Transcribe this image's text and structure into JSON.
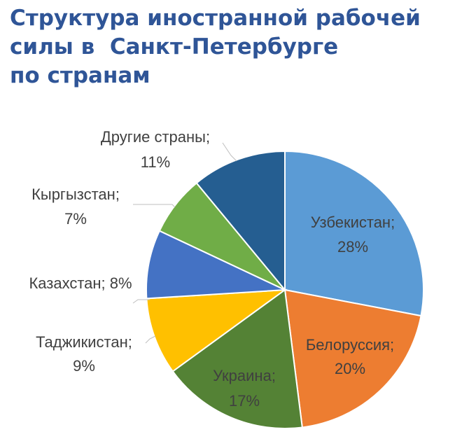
{
  "title": {
    "line1": "Структура иностранной рабочей",
    "line2": "силы в  Санкт-Петербурге",
    "line3": "по странам"
  },
  "chart_data": {
    "type": "pie",
    "start_angle_deg": 0,
    "direction": "clockwise",
    "legend": "none",
    "slices": [
      {
        "label": "Узбекистан;",
        "value": 28,
        "value_text": "28%",
        "color": "#5b9bd5",
        "label_pos": "inside",
        "text_color": "#404040"
      },
      {
        "label": "Белоруссия;",
        "value": 20,
        "value_text": "20%",
        "color": "#ed7d31",
        "label_pos": "inside",
        "text_color": "#404040"
      },
      {
        "label": "Украина;",
        "value": 17,
        "value_text": "17%",
        "color": "#548235",
        "label_pos": "inside",
        "text_color": "#404040"
      },
      {
        "label": "Таджикистан;",
        "value": 9,
        "value_text": "9%",
        "color": "#ffc000",
        "label_pos": "outside-left",
        "text_color": "#404040"
      },
      {
        "label": "Казахстан; 8%",
        "value": 8,
        "value_text": "",
        "color": "#4472c4",
        "label_pos": "outside-left",
        "text_color": "#404040"
      },
      {
        "label": "Кыргызстан;",
        "value": 7,
        "value_text": "7%",
        "color": "#70ad47",
        "label_pos": "outside-left",
        "text_color": "#404040"
      },
      {
        "label": "Другие страны;",
        "value": 11,
        "value_text": "11%",
        "color": "#255e91",
        "label_pos": "outside-top",
        "text_color": "#404040"
      }
    ]
  }
}
